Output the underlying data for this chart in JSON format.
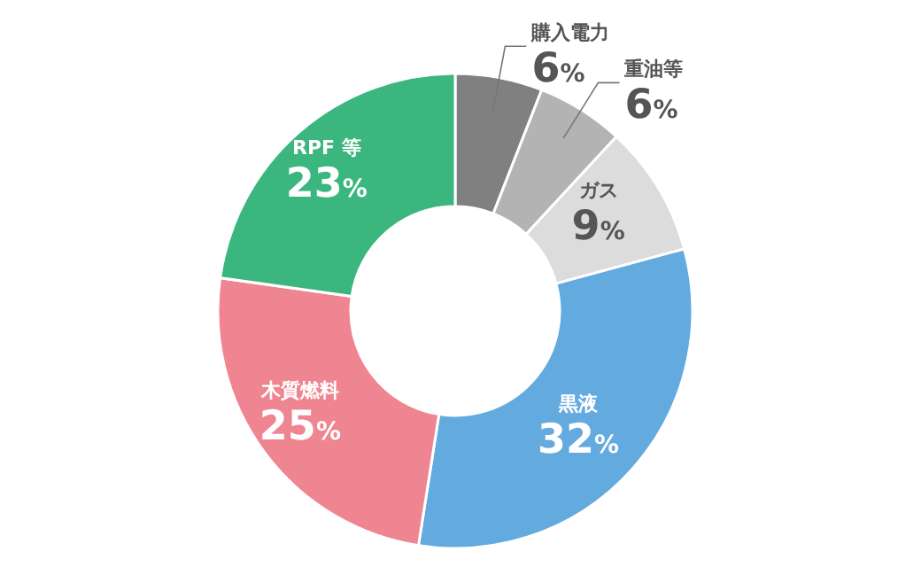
{
  "chart_data": {
    "type": "donut",
    "categories": [
      "購入電力",
      "重油等",
      "ガス",
      "黒液",
      "木質燃料",
      "RPF 等"
    ],
    "values": [
      6,
      6,
      9,
      32,
      25,
      23
    ],
    "colors": [
      "#808080",
      "#b3b3b3",
      "#dcdcdc",
      "#63aadf",
      "#ee8590",
      "#3bb67e"
    ],
    "value_labels": [
      "6%",
      "6%",
      "9%",
      "32%",
      "25%",
      "23%"
    ],
    "legend": false
  }
}
